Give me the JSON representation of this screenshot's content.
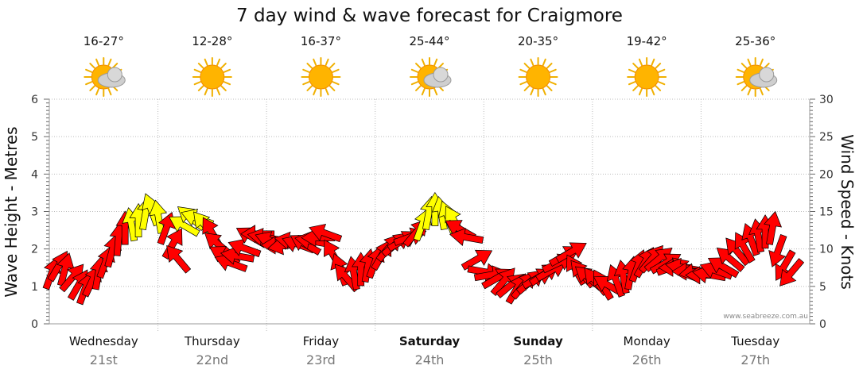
{
  "title": "7 day wind & wave forecast for Craigmore",
  "watermark": "www.seabreeze.com.au",
  "colors": {
    "strong": "#ff0000",
    "moderate": "#ffff00",
    "grid": "#bbbbbb",
    "outline": "#000000"
  },
  "days": [
    {
      "name": "Wednesday",
      "date": "21st",
      "temp": "16-27°",
      "icon": "sun-cloud-icon",
      "bold": false
    },
    {
      "name": "Thursday",
      "date": "22nd",
      "temp": "12-28°",
      "icon": "sun-icon",
      "bold": false
    },
    {
      "name": "Friday",
      "date": "23rd",
      "temp": "16-37°",
      "icon": "sun-icon",
      "bold": false
    },
    {
      "name": "Saturday",
      "date": "24th",
      "temp": "25-44°",
      "icon": "sun-cloud-icon",
      "bold": true
    },
    {
      "name": "Sunday",
      "date": "25th",
      "temp": "20-35°",
      "icon": "sun-icon",
      "bold": true
    },
    {
      "name": "Monday",
      "date": "26th",
      "temp": "19-42°",
      "icon": "sun-icon",
      "bold": false
    },
    {
      "name": "Tuesday",
      "date": "27th",
      "temp": "25-36°",
      "icon": "sun-cloud-icon",
      "bold": false
    }
  ],
  "chart_data": {
    "type": "line",
    "title": "7 day wind & wave forecast for Craigmore",
    "y_left": {
      "label": "Wave Height - Metres",
      "range": [
        0,
        6
      ],
      "ticks": [
        "0",
        "1",
        "2",
        "3",
        "4",
        "5",
        "6"
      ]
    },
    "y_right": {
      "label": "Wind Speed - Knots",
      "range": [
        0,
        30
      ],
      "ticks": [
        "0",
        "5",
        "10",
        "15",
        "20",
        "25",
        "30"
      ]
    },
    "grid": true,
    "x_unit": "day",
    "categories": [
      "Wednesday 21st",
      "Thursday 22nd",
      "Friday 23rd",
      "Saturday 24th",
      "Sunday 25th",
      "Monday 26th",
      "Tuesday 27th"
    ],
    "series": [
      {
        "name": "Wind Speed",
        "values_knots": [
          6.5,
          7.5,
          7,
          6,
          5,
          4.5,
          5.5,
          6.5,
          8,
          9.5,
          11,
          12.5,
          13,
          13.5,
          14.5,
          15,
          14,
          12.5,
          10.5,
          8.5,
          13,
          14,
          14,
          13,
          12,
          10.5,
          9,
          8,
          9,
          10,
          11.5,
          12,
          11.5,
          11,
          10.5,
          10.5,
          11,
          10.5,
          10.5,
          11,
          11.5,
          12,
          9,
          7,
          6,
          6.5,
          7,
          7.5,
          8,
          9,
          10,
          10.5,
          11,
          11.5,
          12,
          13,
          14.5,
          15,
          14.5,
          14,
          13.5,
          12.5,
          11.5,
          8.5,
          7,
          6.5,
          6,
          5.5,
          5,
          4.5,
          5,
          5.5,
          6,
          6.5,
          7,
          8,
          9,
          9.5,
          7,
          6.5,
          6,
          5.5,
          5,
          5,
          5.5,
          6,
          6.5,
          7.5,
          8,
          8.5,
          8.5,
          8,
          7.5,
          7.5,
          7.5,
          7,
          7,
          6.5,
          6.5,
          7,
          7.5,
          8.5,
          9.5,
          10,
          11,
          11.5,
          12,
          12.5,
          10,
          8,
          7
        ],
        "direction_deg": [
          20,
          30,
          15,
          40,
          30,
          20,
          25,
          10,
          20,
          15,
          5,
          0,
          350,
          0,
          10,
          340,
          350,
          20,
          30,
          320,
          300,
          310,
          290,
          320,
          330,
          310,
          300,
          290,
          280,
          290,
          300,
          270,
          280,
          290,
          270,
          260,
          280,
          290,
          300,
          280,
          270,
          290,
          330,
          340,
          320,
          350,
          0,
          10,
          20,
          30,
          40,
          50,
          60,
          70,
          40,
          20,
          10,
          0,
          350,
          340,
          330,
          300,
          280,
          60,
          100,
          80,
          60,
          40,
          50,
          30,
          40,
          50,
          60,
          55,
          60,
          65,
          60,
          60,
          330,
          320,
          310,
          320,
          330,
          300,
          340,
          350,
          10,
          20,
          30,
          40,
          50,
          60,
          70,
          270,
          280,
          270,
          260,
          270,
          280,
          290,
          300,
          310,
          320,
          330,
          340,
          350,
          0,
          10,
          200,
          210,
          220
        ]
      }
    ]
  }
}
